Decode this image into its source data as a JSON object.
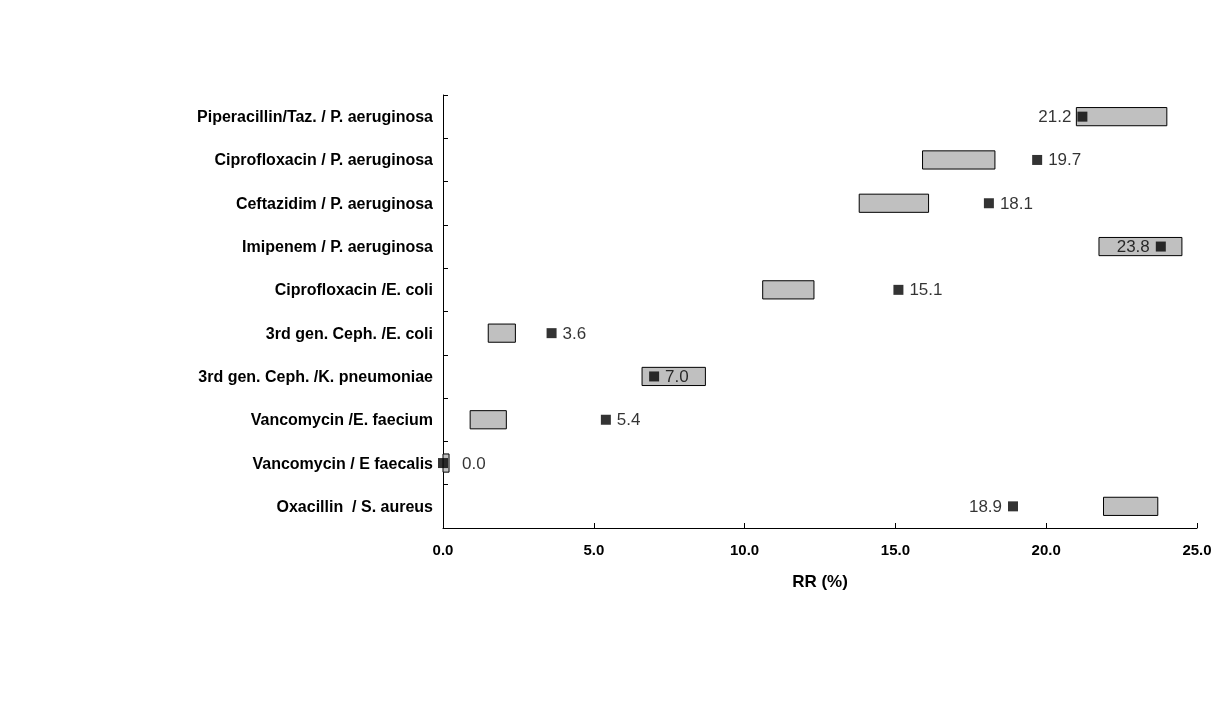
{
  "chart_data": {
    "type": "bar",
    "orientation": "horizontal",
    "xlabel": "RR (%)",
    "categories": [
      "Piperacillin/Taz. / P. aeruginosa",
      "Ciprofloxacin / P. aeruginosa",
      "Ceftazidim / P. aeruginosa",
      "Imipenem / P. aeruginosa",
      "Ciprofloxacin /E. coli",
      "3rd gen. Ceph. /E. coli",
      "3rd gen. Ceph. /K. pneumoniae",
      "Vancomycin /E. faecium",
      "Vancomycin / E faecalis",
      "Oxacillin  / S. aureus"
    ],
    "series": [
      {
        "color": "#c0c0c0",
        "base": [
          21.0,
          15.9,
          13.8,
          21.75,
          10.6,
          1.5,
          6.6,
          0.9,
          0.0,
          21.9
        ],
        "values": [
          3.0,
          2.4,
          2.3,
          2.75,
          1.7,
          0.9,
          2.1,
          1.2,
          0.2,
          1.8
        ]
      },
      {
        "type": "scatter",
        "color": "#000000",
        "x": [
          "Piperacillin/Taz. / P. aeruginosa",
          "Ciprofloxacin / P. aeruginosa",
          "Ceftazidim / P. aeruginosa",
          "Imipenem / P. aeruginosa",
          "Ciprofloxacin /E. coli",
          "3rd gen. Ceph. /E. coli",
          "3rd gen. Ceph. /K. pneumoniae",
          "Vancomycin /E. faecium",
          "Vancomycin / E faecalis",
          "Oxacillin  / S. aureus"
        ],
        "values": [
          21.2,
          19.7,
          18.1,
          23.8,
          15.1,
          3.6,
          7.0,
          5.4,
          0.0,
          18.9
        ],
        "value_labels": [
          "21.2",
          "19.7",
          "18.1",
          "23.8",
          "15.1",
          "3.6",
          "7.0",
          "5.4",
          "0.0",
          "18.9"
        ]
      }
    ],
    "xlim": [
      0,
      25
    ],
    "xticks": [
      {
        "value": 0,
        "label": "0.0"
      },
      {
        "value": 5,
        "label": "5.0"
      },
      {
        "value": 10,
        "label": "10.0"
      },
      {
        "value": 15,
        "label": "15.0"
      },
      {
        "value": 20,
        "label": "20.0"
      },
      {
        "value": 25,
        "label": "25.0"
      }
    ],
    "grid": false,
    "marker": "square"
  }
}
